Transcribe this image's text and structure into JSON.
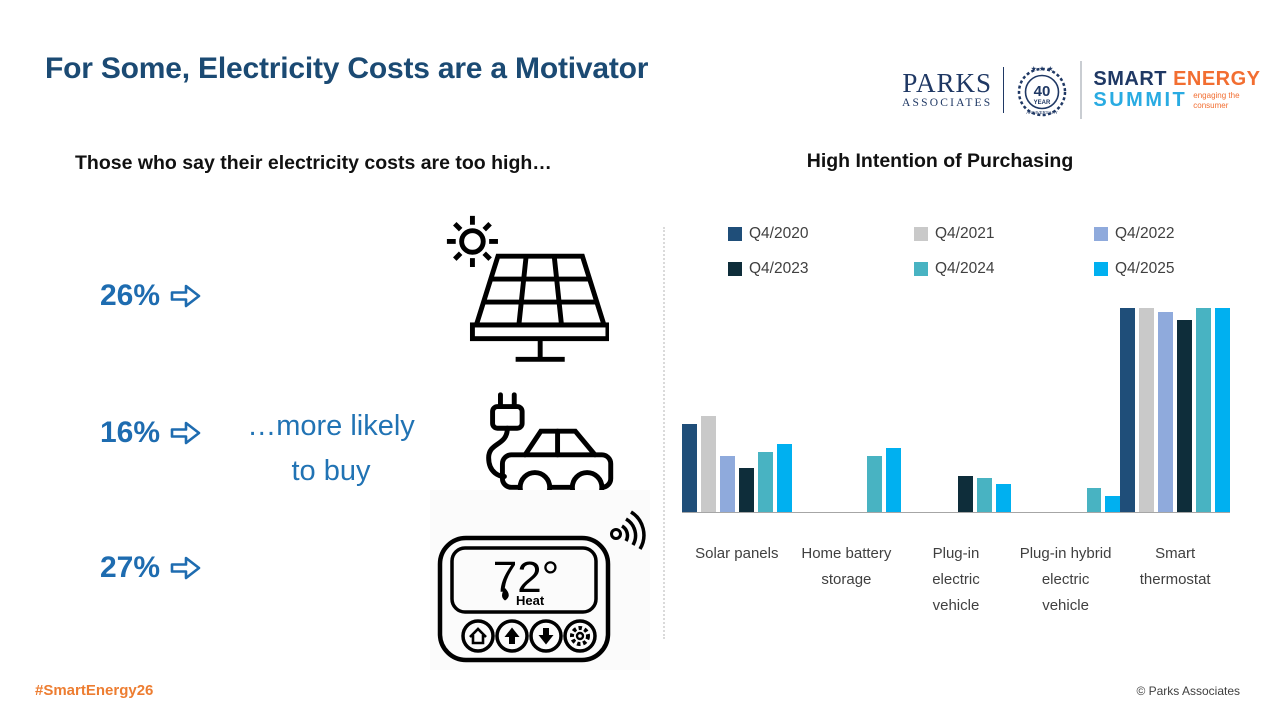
{
  "slide": {
    "title": "For Some, Electricity Costs are a Motivator",
    "footer_hashtag": "#SmartEnergy26",
    "footer_copyright": "© Parks Associates"
  },
  "logos": {
    "parks_name": "PARKS",
    "parks_sub": "ASSOCIATES",
    "badge_number": "40",
    "badge_year": "YEAR",
    "badge_anniversary": "ANNIVERSARY",
    "summit_word1": "SMART",
    "summit_word2": "ENERGY",
    "summit_word3": "SUMMIT",
    "summit_tagline": "engaging the consumer"
  },
  "left": {
    "subtitle": "Those who say their electricity costs are too high…",
    "stats": [
      {
        "value": "26%",
        "icon": "solar-panel-icon"
      },
      {
        "value": "16%",
        "icon": "electric-vehicle-icon"
      },
      {
        "value": "27%",
        "icon": "smart-thermostat-icon"
      }
    ],
    "more_likely_line1": "…more likely",
    "more_likely_line2": "to buy",
    "thermostat_temp": "72°",
    "thermostat_mode": "Heat"
  },
  "chart_data": {
    "type": "bar",
    "title": "High Intention of Purchasing",
    "categories": [
      "Solar panels",
      "Home battery storage",
      "Plug-in electric vehicle",
      "Plug-in hybrid electric vehicle",
      "Smart thermostat"
    ],
    "series": [
      {
        "name": "Q4/2020",
        "color": "#1F4E79",
        "values": [
          22,
          0,
          0,
          0,
          51
        ]
      },
      {
        "name": "Q4/2021",
        "color": "#C9C9C9",
        "values": [
          24,
          0,
          0,
          0,
          51
        ]
      },
      {
        "name": "Q4/2022",
        "color": "#8FAADC",
        "values": [
          14,
          0,
          0,
          0,
          50
        ]
      },
      {
        "name": "Q4/2023",
        "color": "#0E2D3A",
        "values": [
          11,
          0,
          9,
          0,
          48
        ]
      },
      {
        "name": "Q4/2024",
        "color": "#48B3C2",
        "values": [
          15,
          14,
          8.5,
          6,
          51
        ]
      },
      {
        "name": "Q4/2025",
        "color": "#00B0F0",
        "values": [
          17,
          16,
          7,
          4,
          51
        ]
      }
    ],
    "value_unit": "percent (estimated from bar heights; no axis labels shown)",
    "ylim": [
      0,
      55
    ],
    "grid": false,
    "legend_position": "top",
    "axis_line_color": "#A6A6A6"
  },
  "colors": {
    "title_navy": "#1B4A73",
    "stat_blue": "#1E6CB0",
    "more_likely_blue": "#2173B4",
    "hashtag_orange": "#ED7D31",
    "logo_navy": "#1F3864",
    "logo_orange": "#F26E31",
    "logo_cyan": "#29ABE2"
  }
}
